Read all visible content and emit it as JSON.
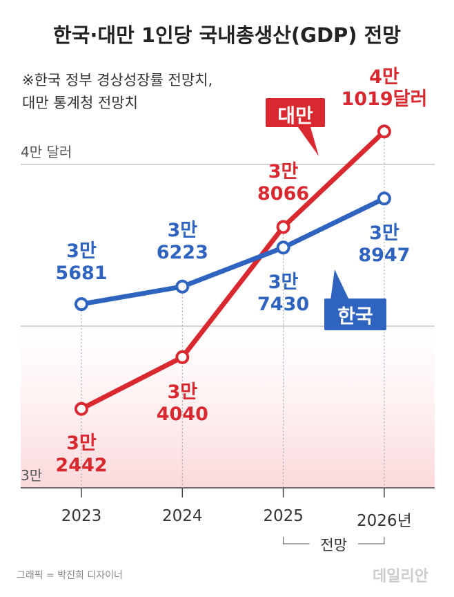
{
  "chart_data": {
    "type": "line",
    "title": "한국·대만 1인당 국내총생산(GDP) 전망",
    "note": "※한국 정부 경상성장률 전망치,\n대만 통계청 전망치",
    "categories": [
      "2023",
      "2024",
      "2025",
      "2026년"
    ],
    "forecast_label": "전망",
    "series": [
      {
        "name": "대만",
        "color": "#d9282f",
        "values": [
          32442,
          34040,
          38066,
          41019
        ],
        "value_labels": [
          "3만\n2442",
          "3만\n4040",
          "3만\n8066",
          "4만\n1019달러"
        ]
      },
      {
        "name": "한국",
        "color": "#2f63c0",
        "values": [
          35681,
          36223,
          37430,
          38947
        ],
        "value_labels": [
          "3만\n5681",
          "3만\n6223",
          "3만\n7430",
          "3만\n8947"
        ]
      }
    ],
    "ylim": [
      30000,
      41200
    ],
    "yticks": [
      {
        "value": 30000,
        "label": "3만"
      },
      {
        "value": 35000,
        "label": null
      },
      {
        "value": 40000,
        "label": "4만 달러"
      }
    ],
    "grid": true,
    "credit": "그래픽 = 박진희 디자이너",
    "logo": "데일리안"
  }
}
